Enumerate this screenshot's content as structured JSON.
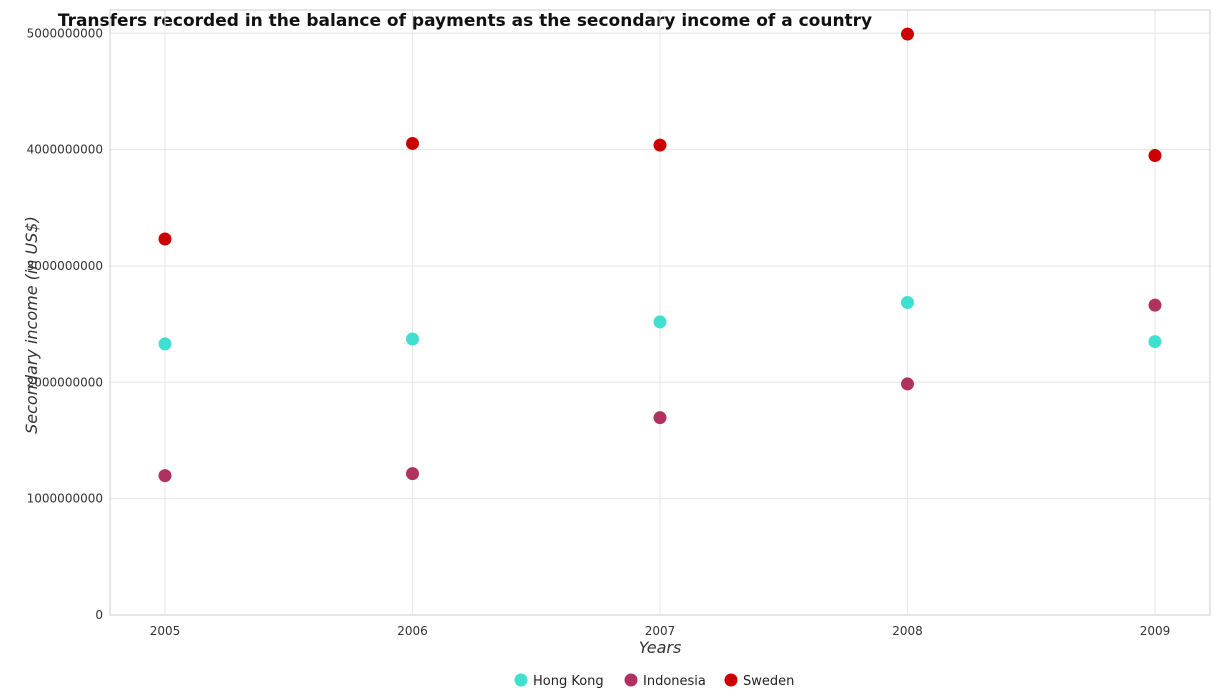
{
  "chart_data": {
    "type": "scatter",
    "title": "Transfers recorded in the balance of payments as the secondary income of a country",
    "xlabel": "Years",
    "ylabel": "Secondary income (in US$)",
    "categories": [
      "2005",
      "2006",
      "2007",
      "2008",
      "2009"
    ],
    "ylim": [
      0,
      5200000000
    ],
    "yticks": [
      0,
      1000000000,
      2000000000,
      3000000000,
      4000000000,
      5000000000
    ],
    "ytick_labels": [
      "0",
      "1000000000",
      "2000000000",
      "3000000000",
      "4000000000",
      "5000000000"
    ],
    "grid": true,
    "legend_position": "bottom",
    "series": [
      {
        "name": "Hong Kong",
        "color": "#40e0d0",
        "values": [
          2330000000,
          2372000000,
          2519000000,
          2686000000,
          2350000000
        ]
      },
      {
        "name": "Indonesia",
        "color": "#b03060",
        "values": [
          1198000000,
          1215000000,
          1696000000,
          1986000000,
          2663000000
        ]
      },
      {
        "name": "Sweden",
        "color": "#cc0000",
        "values": [
          3232000000,
          4053000000,
          4039000000,
          4993000000,
          3949000000
        ]
      }
    ]
  }
}
